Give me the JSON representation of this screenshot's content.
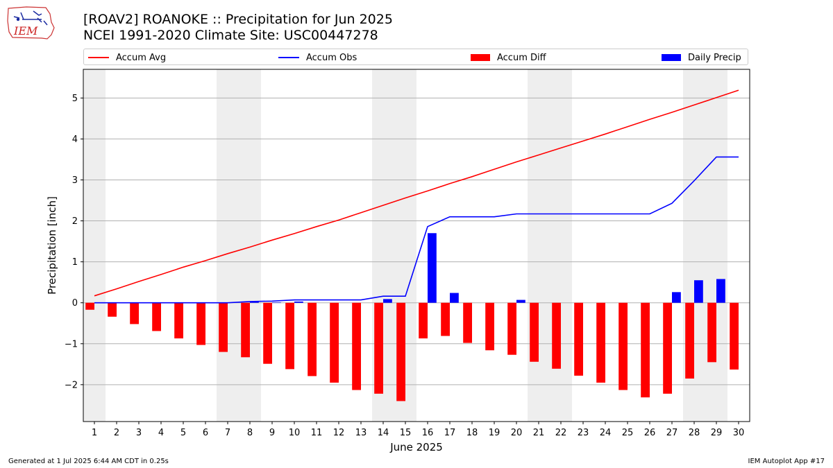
{
  "header": {
    "logo_text": "IEM",
    "title_line1": "[ROAV2] ROANOKE :: Precipitation for Jun 2025",
    "title_line2": "NCEI 1991-2020 Climate Site: USC00447278"
  },
  "legend": {
    "accum_avg": "Accum Avg",
    "accum_obs": "Accum Obs",
    "accum_diff": "Accum Diff",
    "daily_precip": "Daily Precip"
  },
  "footer": {
    "generated": "Generated at 1 Jul 2025 6:44 AM CDT in 0.25s",
    "app": "IEM Autoplot App #17"
  },
  "colors": {
    "accum_avg": "#ff0000",
    "accum_obs": "#0000ff",
    "accum_diff": "#ff0000",
    "daily_precip": "#0000ff",
    "weekend_shade": "#eeeeee",
    "grid": "#b0b0b0"
  },
  "chart_data": {
    "type": "bar",
    "xlabel": "June 2025",
    "ylabel": "Precipitation [inch]",
    "ylim": [
      -2.9,
      5.7
    ],
    "yticks": [
      -2,
      -1,
      0,
      1,
      2,
      3,
      4,
      5
    ],
    "grid": "horizontal",
    "legend_position": "top",
    "weekend_days": [
      1,
      7,
      8,
      14,
      15,
      21,
      22,
      28,
      29
    ],
    "days": [
      1,
      2,
      3,
      4,
      5,
      6,
      7,
      8,
      9,
      10,
      11,
      12,
      13,
      14,
      15,
      16,
      17,
      18,
      19,
      20,
      21,
      22,
      23,
      24,
      25,
      26,
      27,
      28,
      29,
      30
    ],
    "series": [
      {
        "name": "Accum Avg",
        "kind": "line",
        "values": [
          0.17,
          0.34,
          0.52,
          0.69,
          0.87,
          1.03,
          1.2,
          1.36,
          1.53,
          1.69,
          1.86,
          2.02,
          2.2,
          2.38,
          2.56,
          2.73,
          2.91,
          3.08,
          3.26,
          3.44,
          3.61,
          3.78,
          3.95,
          4.12,
          4.3,
          4.48,
          4.65,
          4.83,
          5.01,
          5.19
        ]
      },
      {
        "name": "Accum Obs",
        "kind": "line",
        "values": [
          0.0,
          0.0,
          0.0,
          0.0,
          0.0,
          0.0,
          0.0,
          0.03,
          0.04,
          0.07,
          0.07,
          0.07,
          0.07,
          0.16,
          0.16,
          1.86,
          2.1,
          2.1,
          2.1,
          2.17,
          2.17,
          2.17,
          2.17,
          2.17,
          2.17,
          2.17,
          2.43,
          2.98,
          3.56,
          3.56
        ]
      },
      {
        "name": "Accum Diff",
        "kind": "bar",
        "values": [
          -0.17,
          -0.34,
          -0.52,
          -0.69,
          -0.87,
          -1.03,
          -1.2,
          -1.33,
          -1.49,
          -1.62,
          -1.79,
          -1.95,
          -2.13,
          -2.22,
          -2.4,
          -0.87,
          -0.81,
          -0.98,
          -1.16,
          -1.27,
          -1.44,
          -1.61,
          -1.78,
          -1.95,
          -2.13,
          -2.31,
          -2.22,
          -1.85,
          -1.45,
          -1.63
        ]
      },
      {
        "name": "Daily Precip",
        "kind": "bar",
        "values": [
          0,
          0,
          0,
          0,
          0,
          0,
          0,
          0.03,
          0.01,
          0.03,
          0,
          0,
          0,
          0.09,
          0,
          1.7,
          0.24,
          0,
          0,
          0.07,
          0,
          0,
          0,
          0,
          0,
          0,
          0.26,
          0.55,
          0.58,
          0
        ]
      }
    ]
  }
}
